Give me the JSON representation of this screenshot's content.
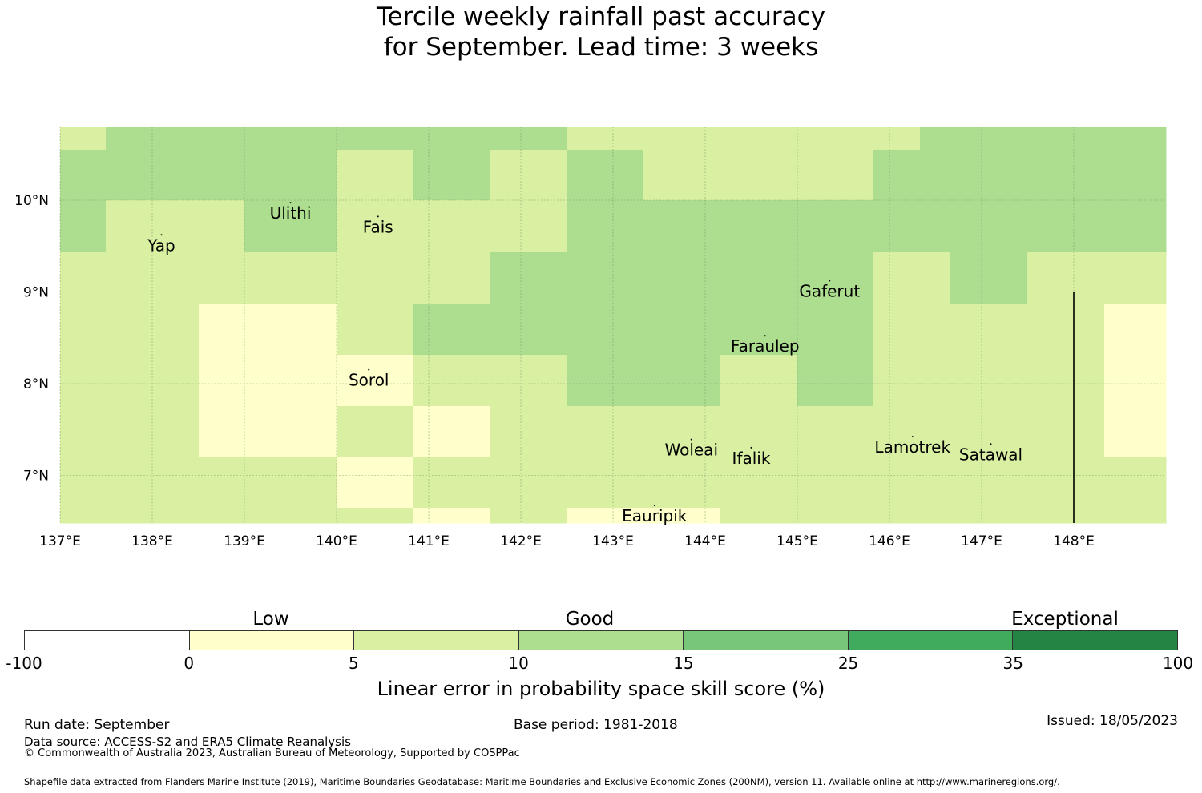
{
  "title": {
    "line1": "Tercile weekly rainfall past accuracy",
    "line2": "for September. Lead time: 3 weeks"
  },
  "map": {
    "lon_range": [
      137,
      149
    ],
    "lat_range": [
      6.5,
      10.8
    ],
    "x_ticks": [
      "137°E",
      "138°E",
      "139°E",
      "140°E",
      "141°E",
      "142°E",
      "143°E",
      "144°E",
      "145°E",
      "146°E",
      "147°E",
      "148°E"
    ],
    "y_ticks": [
      "10°N",
      "9°N",
      "8°N",
      "7°N"
    ],
    "places": [
      {
        "name": "Yap",
        "lon": 138.1,
        "lat": 9.5
      },
      {
        "name": "Ulithi",
        "lon": 139.5,
        "lat": 9.85
      },
      {
        "name": "Fais",
        "lon": 140.45,
        "lat": 9.7
      },
      {
        "name": "Gaferut",
        "lon": 145.35,
        "lat": 9.0
      },
      {
        "name": "Faraulep",
        "lon": 144.65,
        "lat": 8.4
      },
      {
        "name": "Sorol",
        "lon": 140.35,
        "lat": 8.03
      },
      {
        "name": "Woleai",
        "lon": 143.85,
        "lat": 7.27
      },
      {
        "name": "Ifalik",
        "lon": 144.5,
        "lat": 7.18
      },
      {
        "name": "Lamotrek",
        "lon": 146.25,
        "lat": 7.3
      },
      {
        "name": "Satawal",
        "lon": 147.1,
        "lat": 7.22
      },
      {
        "name": "Eauripik",
        "lon": 143.45,
        "lat": 6.55
      }
    ],
    "colors": [
      "#ffffcc",
      "#d9f0a3",
      "#addd8e",
      "#78c679",
      "#41ab5d",
      "#238443"
    ]
  },
  "colorbar": {
    "ticks": [
      "-100",
      "0",
      "5",
      "10",
      "15",
      "25",
      "35",
      "100"
    ],
    "colors": [
      "#ffffff",
      "#ffffcc",
      "#d9f0a3",
      "#addd8e",
      "#78c679",
      "#41ab5d",
      "#238443"
    ],
    "categories": [
      "Low",
      "Good",
      "Exceptional"
    ],
    "label": "Linear error in probability space skill score (%)"
  },
  "footer": {
    "run_date": "Run date: September",
    "base_period": "Base period: 1981-2018",
    "issued": "Issued: 18/05/2023",
    "data_source": "Data source: ACCESS-S2 and ERA5 Climate Reanalysis",
    "copyright": "© Commonwealth of Australia 2023, Australian Bureau of Meteorology, Supported by COSPPac",
    "shapefile": "Shapefile data extracted from Flanders Marine Institute (2019), Maritime Boundaries Geodatabase: Maritime Boundaries and Exclusive Economic Zones (200NM), version 11. Available online at http://www.marineregions.org/."
  }
}
